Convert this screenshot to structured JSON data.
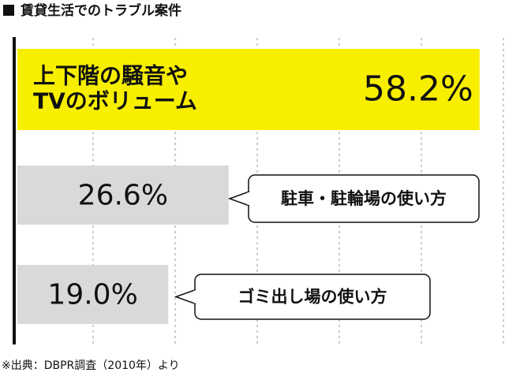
{
  "chart_data": {
    "type": "bar",
    "orientation": "horizontal",
    "title": "賃貸生活でのトラブル案件",
    "source": "※出典：DBPR調査（2010年）より",
    "categories": [
      "上下階の騒音や\nTVのボリューム",
      "駐車・駐輪場の使い方",
      "ゴミ出し場の使い方"
    ],
    "values": [
      58.2,
      26.6,
      19.0
    ],
    "value_labels": [
      "58.2%",
      "26.6%",
      "19.0%"
    ],
    "colors": [
      "#f8ef00",
      "#d9d9d9",
      "#d9d9d9"
    ],
    "xlim": [
      0,
      61.3
    ],
    "grid": true
  }
}
